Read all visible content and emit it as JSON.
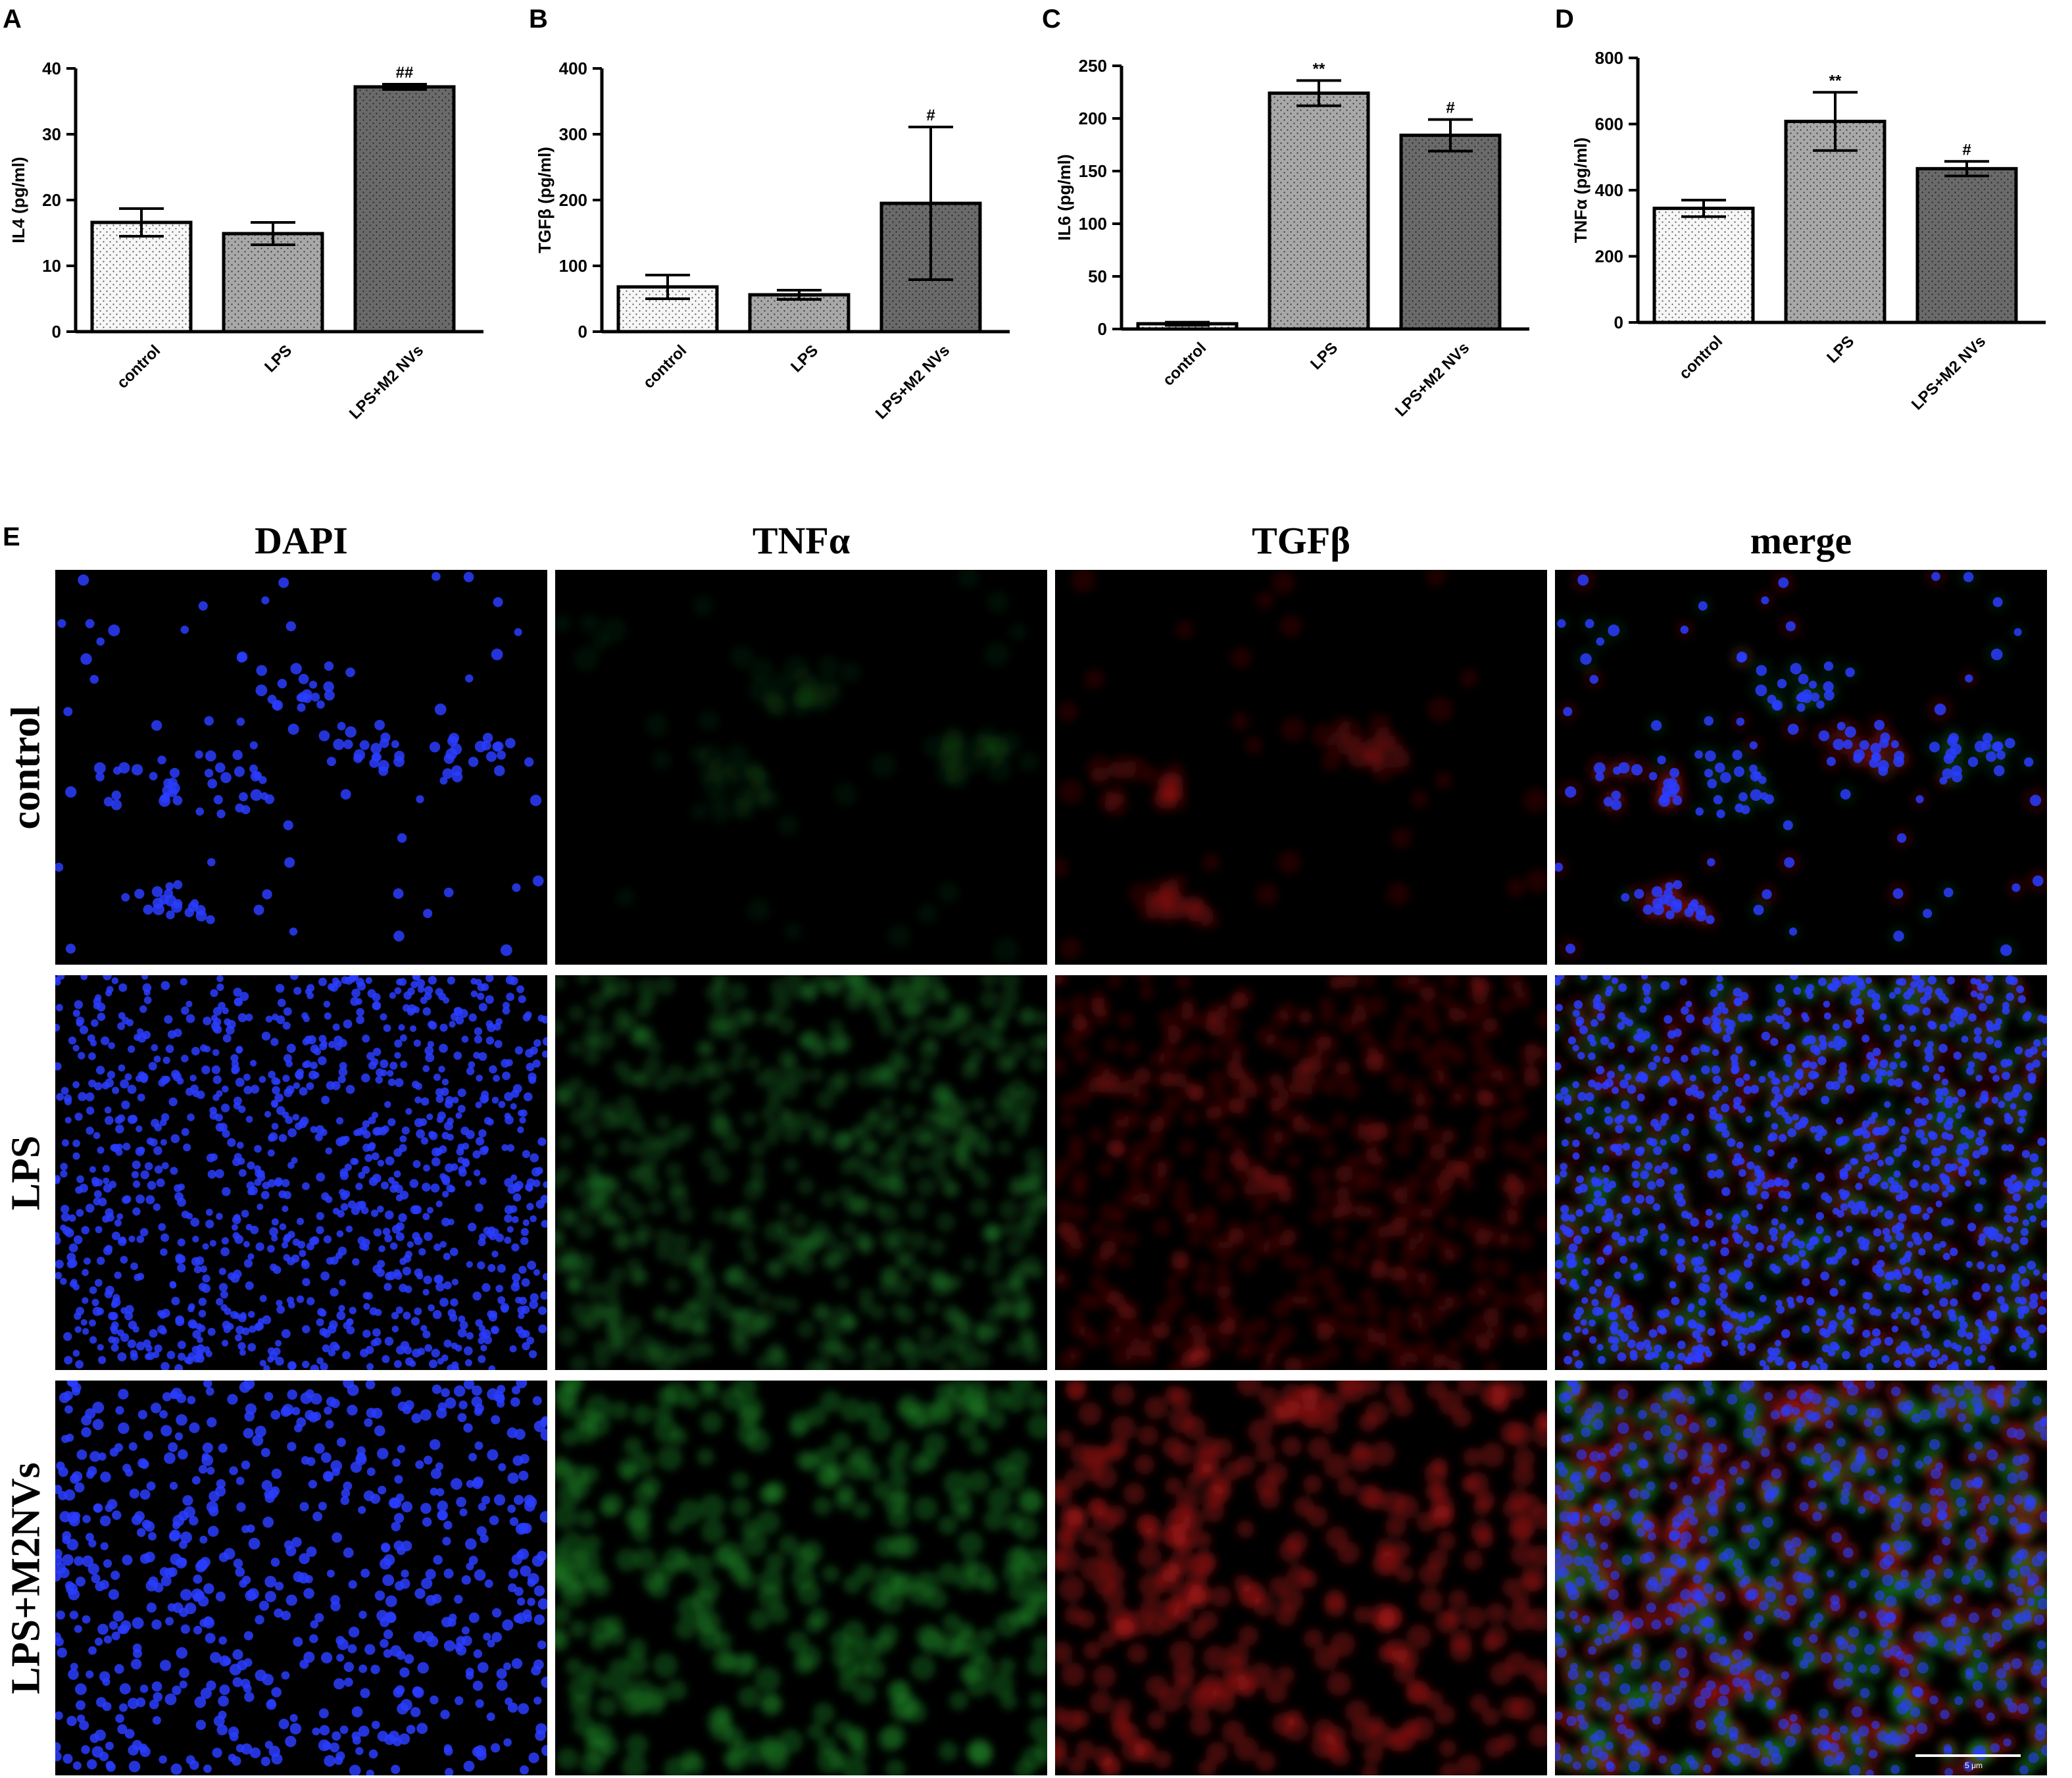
{
  "panels": [
    "A",
    "B",
    "C",
    "D",
    "E"
  ],
  "chart_data": [
    {
      "type": "bar",
      "panel": "A",
      "ylabel": "IL4 (pg/ml)",
      "categories": [
        "control",
        "LPS",
        "LPS+M2 NVs"
      ],
      "values": [
        16.6,
        14.9,
        37.2
      ],
      "errors": [
        2.1,
        1.7,
        0.4
      ],
      "annotations": [
        "",
        "",
        "##"
      ],
      "ylim": [
        0,
        40
      ],
      "yticks": [
        0,
        10,
        20,
        30,
        40
      ]
    },
    {
      "type": "bar",
      "panel": "B",
      "ylabel": "TGFβ (pg/ml)",
      "categories": [
        "control",
        "LPS",
        "LPS+M2 NVs"
      ],
      "values": [
        68,
        56,
        195
      ],
      "errors": [
        18,
        7,
        116
      ],
      "annotations": [
        "",
        "",
        "#"
      ],
      "ylim": [
        0,
        400
      ],
      "yticks": [
        0,
        100,
        200,
        300,
        400
      ]
    },
    {
      "type": "bar",
      "panel": "C",
      "ylabel": "IL6 (pg/ml)",
      "categories": [
        "control",
        "LPS",
        "LPS+M2 NVs"
      ],
      "values": [
        5,
        224,
        184
      ],
      "errors": [
        1.5,
        12,
        15
      ],
      "annotations": [
        "",
        "**",
        "#"
      ],
      "ylim": [
        0,
        250
      ],
      "yticks": [
        0,
        50,
        100,
        150,
        200,
        250
      ]
    },
    {
      "type": "bar",
      "panel": "D",
      "ylabel": "TNFα (pg/ml)",
      "categories": [
        "control",
        "LPS",
        "LPS+M2 NVs"
      ],
      "values": [
        345,
        608,
        465
      ],
      "errors": [
        25,
        88,
        22
      ],
      "annotations": [
        "",
        "**",
        "#"
      ],
      "ylim": [
        0,
        800
      ],
      "yticks": [
        0,
        200,
        400,
        600,
        800
      ]
    }
  ],
  "fills": [
    "#f7f7f7",
    "#a8a8a8",
    "#6a6a6a"
  ],
  "microscopy": {
    "columns": [
      "DAPI",
      "TNFα",
      "TGFβ",
      "merge"
    ],
    "rows": [
      "control",
      "LPS",
      "LPS+M2NVs"
    ],
    "scale_label": "5 μm",
    "channel_colors": {
      "DAPI": "#2a3dff",
      "TNFα": "#1f8a2a",
      "TGFβ": "#b01818"
    }
  }
}
